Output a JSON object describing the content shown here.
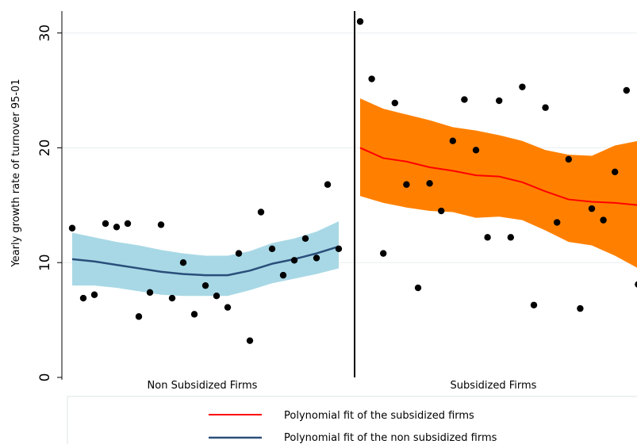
{
  "chart_data": {
    "type": "scatter",
    "ylabel": "Yearly growth rate of turnover 95-01",
    "xlabel": "",
    "ylim": [
      0,
      31
    ],
    "yticks": [
      0,
      10,
      20,
      30
    ],
    "grid": true,
    "group_labels": [
      "Non Subsidized Firms",
      "Subsidized Firms"
    ],
    "legend_position": "bottom",
    "colors": {
      "points": "#000000",
      "fit_subsidized": "#ff0000",
      "fit_non_subsidized": "#2a4f7a",
      "band_subsidized": "#ff8000",
      "band_non_subsidized": "#a8d8e6",
      "cutoff_line": "#000000",
      "grid": "#e8eef0"
    },
    "series": [
      {
        "name": "Non Subsidized Firms",
        "points": [
          {
            "x": 0,
            "y": 13.0
          },
          {
            "x": 1,
            "y": 6.9
          },
          {
            "x": 2,
            "y": 7.2
          },
          {
            "x": 3,
            "y": 13.4
          },
          {
            "x": 4,
            "y": 13.1
          },
          {
            "x": 5,
            "y": 13.4
          },
          {
            "x": 6,
            "y": 5.3
          },
          {
            "x": 7,
            "y": 7.4
          },
          {
            "x": 8,
            "y": 13.3
          },
          {
            "x": 9,
            "y": 6.9
          },
          {
            "x": 10,
            "y": 10.0
          },
          {
            "x": 11,
            "y": 5.5
          },
          {
            "x": 12,
            "y": 8.0
          },
          {
            "x": 13,
            "y": 7.1
          },
          {
            "x": 14,
            "y": 6.1
          },
          {
            "x": 15,
            "y": 10.8
          },
          {
            "x": 16,
            "y": 3.2
          },
          {
            "x": 17,
            "y": 14.4
          },
          {
            "x": 18,
            "y": 11.2
          },
          {
            "x": 19,
            "y": 8.9
          },
          {
            "x": 20,
            "y": 10.2
          },
          {
            "x": 21,
            "y": 12.1
          },
          {
            "x": 22,
            "y": 10.4
          },
          {
            "x": 23,
            "y": 16.8
          },
          {
            "x": 24,
            "y": 11.2
          }
        ]
      },
      {
        "name": "Subsidized Firms",
        "points": [
          {
            "x": 25,
            "y": 31.0
          },
          {
            "x": 26,
            "y": 26.0
          },
          {
            "x": 27,
            "y": 10.8
          },
          {
            "x": 28,
            "y": 23.9
          },
          {
            "x": 29,
            "y": 16.8
          },
          {
            "x": 30,
            "y": 7.8
          },
          {
            "x": 31,
            "y": 16.9
          },
          {
            "x": 32,
            "y": 14.5
          },
          {
            "x": 33,
            "y": 20.6
          },
          {
            "x": 34,
            "y": 24.2
          },
          {
            "x": 35,
            "y": 19.8
          },
          {
            "x": 36,
            "y": 12.2
          },
          {
            "x": 37,
            "y": 24.1
          },
          {
            "x": 38,
            "y": 12.2
          },
          {
            "x": 39,
            "y": 25.3
          },
          {
            "x": 40,
            "y": 6.3
          },
          {
            "x": 41,
            "y": 23.5
          },
          {
            "x": 42,
            "y": 13.5
          },
          {
            "x": 43,
            "y": 19.0
          },
          {
            "x": 44,
            "y": 6.0
          },
          {
            "x": 45,
            "y": 14.7
          },
          {
            "x": 46,
            "y": 13.7
          },
          {
            "x": 47,
            "y": 17.9
          },
          {
            "x": 48,
            "y": 25.0
          },
          {
            "x": 49,
            "y": 8.1
          }
        ]
      }
    ],
    "fits": [
      {
        "name": "Polynomial fit of the non subsidized firms",
        "group": "Non Subsidized Firms",
        "x": [
          0,
          2,
          4,
          6,
          8,
          10,
          12,
          14,
          16,
          18,
          20,
          22,
          24
        ],
        "y": [
          10.3,
          10.1,
          9.8,
          9.5,
          9.2,
          9.0,
          8.9,
          8.9,
          9.3,
          9.9,
          10.3,
          10.8,
          11.4
        ],
        "lower": [
          8.0,
          8.0,
          7.8,
          7.5,
          7.2,
          7.1,
          7.1,
          7.1,
          7.6,
          8.2,
          8.6,
          9.0,
          9.5
        ],
        "upper": [
          12.6,
          12.2,
          11.8,
          11.5,
          11.1,
          10.8,
          10.6,
          10.6,
          11.0,
          11.7,
          12.1,
          12.7,
          13.6
        ]
      },
      {
        "name": "Polynomial fit of the subsidized firms",
        "group": "Subsidized Firms",
        "x": [
          25,
          27,
          29,
          31,
          33,
          35,
          37,
          39,
          41,
          43,
          45,
          47,
          49
        ],
        "y": [
          20.0,
          19.1,
          18.8,
          18.3,
          18.0,
          17.6,
          17.5,
          17.0,
          16.2,
          15.5,
          15.3,
          15.2,
          15.0
        ],
        "lower": [
          15.8,
          15.2,
          14.8,
          14.5,
          14.4,
          13.9,
          14.0,
          13.7,
          12.8,
          11.8,
          11.5,
          10.6,
          9.5
        ],
        "upper": [
          24.3,
          23.4,
          22.9,
          22.4,
          21.8,
          21.5,
          21.1,
          20.6,
          19.8,
          19.4,
          19.3,
          20.2,
          20.6
        ]
      }
    ]
  }
}
